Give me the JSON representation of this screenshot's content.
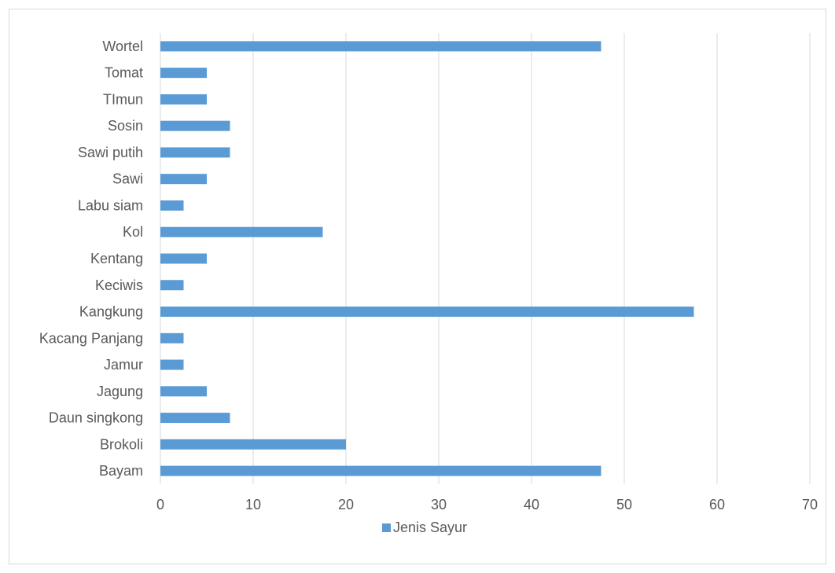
{
  "chart_data": {
    "type": "bar",
    "orientation": "horizontal",
    "categories": [
      "Bayam",
      "Brokoli",
      "Daun singkong",
      "Jagung",
      "Jamur",
      "Kacang Panjang",
      "Kangkung",
      "Keciwis",
      "Kentang",
      "Kol",
      "Labu siam",
      "Sawi",
      "Sawi putih",
      "Sosin",
      "TImun",
      "Tomat",
      "Wortel"
    ],
    "series": [
      {
        "name": "Jenis Sayur",
        "color": "#5b9bd5",
        "values": [
          47.5,
          20,
          7.5,
          5,
          2.5,
          2.5,
          57.5,
          2.5,
          5,
          17.5,
          2.5,
          5,
          7.5,
          7.5,
          5,
          5,
          47.5
        ]
      }
    ],
    "xlim": [
      0,
      70
    ],
    "xticks": [
      0,
      10,
      20,
      30,
      40,
      50,
      60,
      70
    ],
    "grid": "vertical",
    "legend_position": "bottom"
  }
}
